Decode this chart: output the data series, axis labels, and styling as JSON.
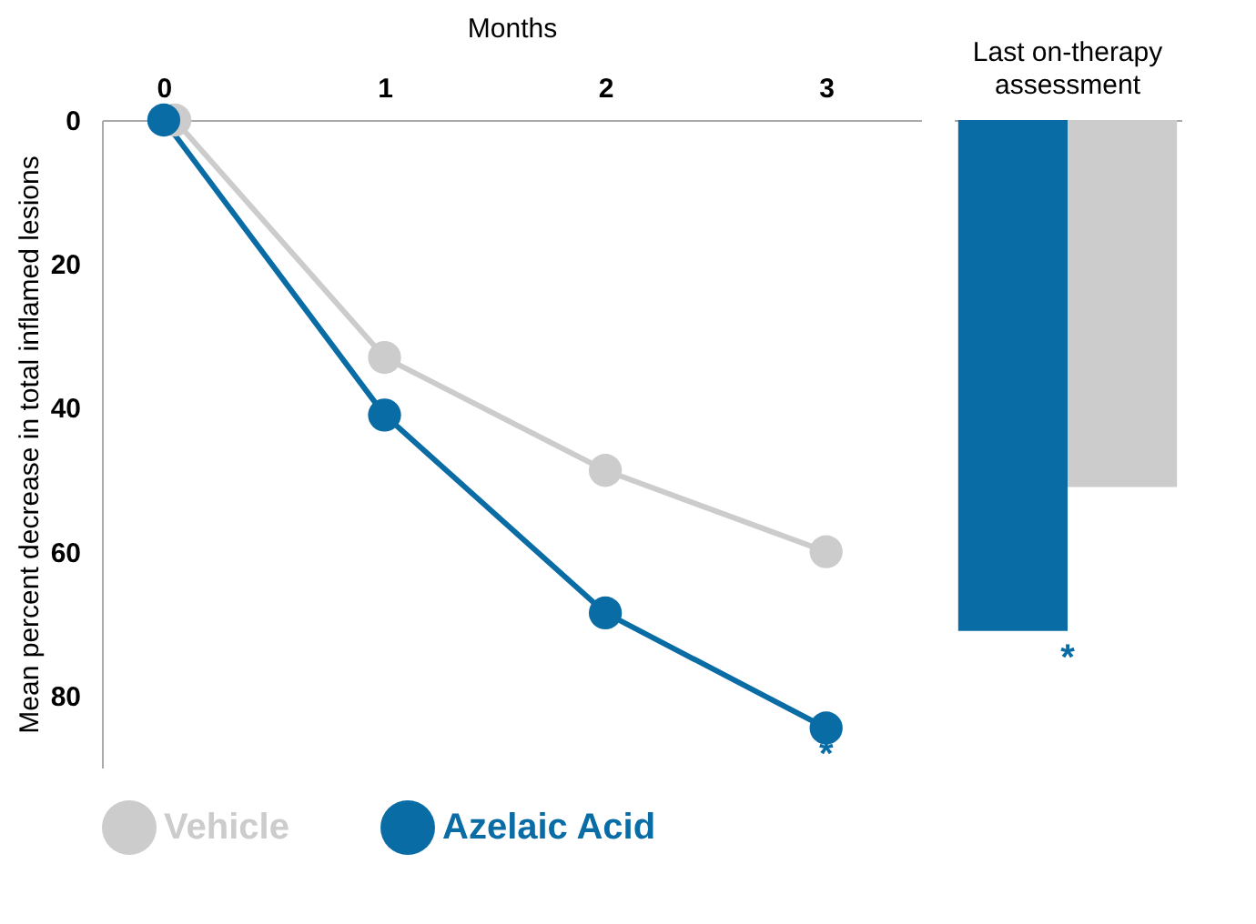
{
  "chart_data": [
    {
      "type": "line",
      "xlabel": "Months",
      "ylabel": "Mean percent decrease in total inflamed lesions",
      "x": [
        0,
        1,
        2,
        3
      ],
      "xlim": [
        -0.28,
        3.43
      ],
      "xticks": [
        0,
        1,
        2,
        3
      ],
      "ylim": [
        90,
        0
      ],
      "yticks": [
        0,
        20,
        40,
        60,
        80
      ],
      "marker": "circle",
      "legend": "bottom",
      "grid": false,
      "series": [
        {
          "name": "Vehicle",
          "color": "#cccccc",
          "x": [
            0.05,
            1,
            2,
            3
          ],
          "values": [
            0,
            33,
            48.7,
            60
          ]
        },
        {
          "name": "Azelaic Acid",
          "color": "#0a6ca5",
          "values": [
            0,
            41,
            68.5,
            84.5
          ]
        }
      ],
      "annotations": [
        {
          "text": "*",
          "x": 3,
          "y": 84.5
        }
      ]
    },
    {
      "type": "bar",
      "categories": [
        "Last on-therapy assessment"
      ],
      "ylim": [
        80,
        0
      ],
      "yticks": [
        0,
        20,
        40,
        60,
        80
      ],
      "tick_labels": "x",
      "grid": false,
      "series": [
        {
          "color": "#0a6ca5",
          "values": [
            71
          ]
        },
        {
          "color": "#cccccc",
          "values": [
            51
          ]
        }
      ],
      "annotations": [
        {
          "text": "*",
          "x": "Last on-therapy assessment",
          "y": 71
        }
      ]
    }
  ]
}
